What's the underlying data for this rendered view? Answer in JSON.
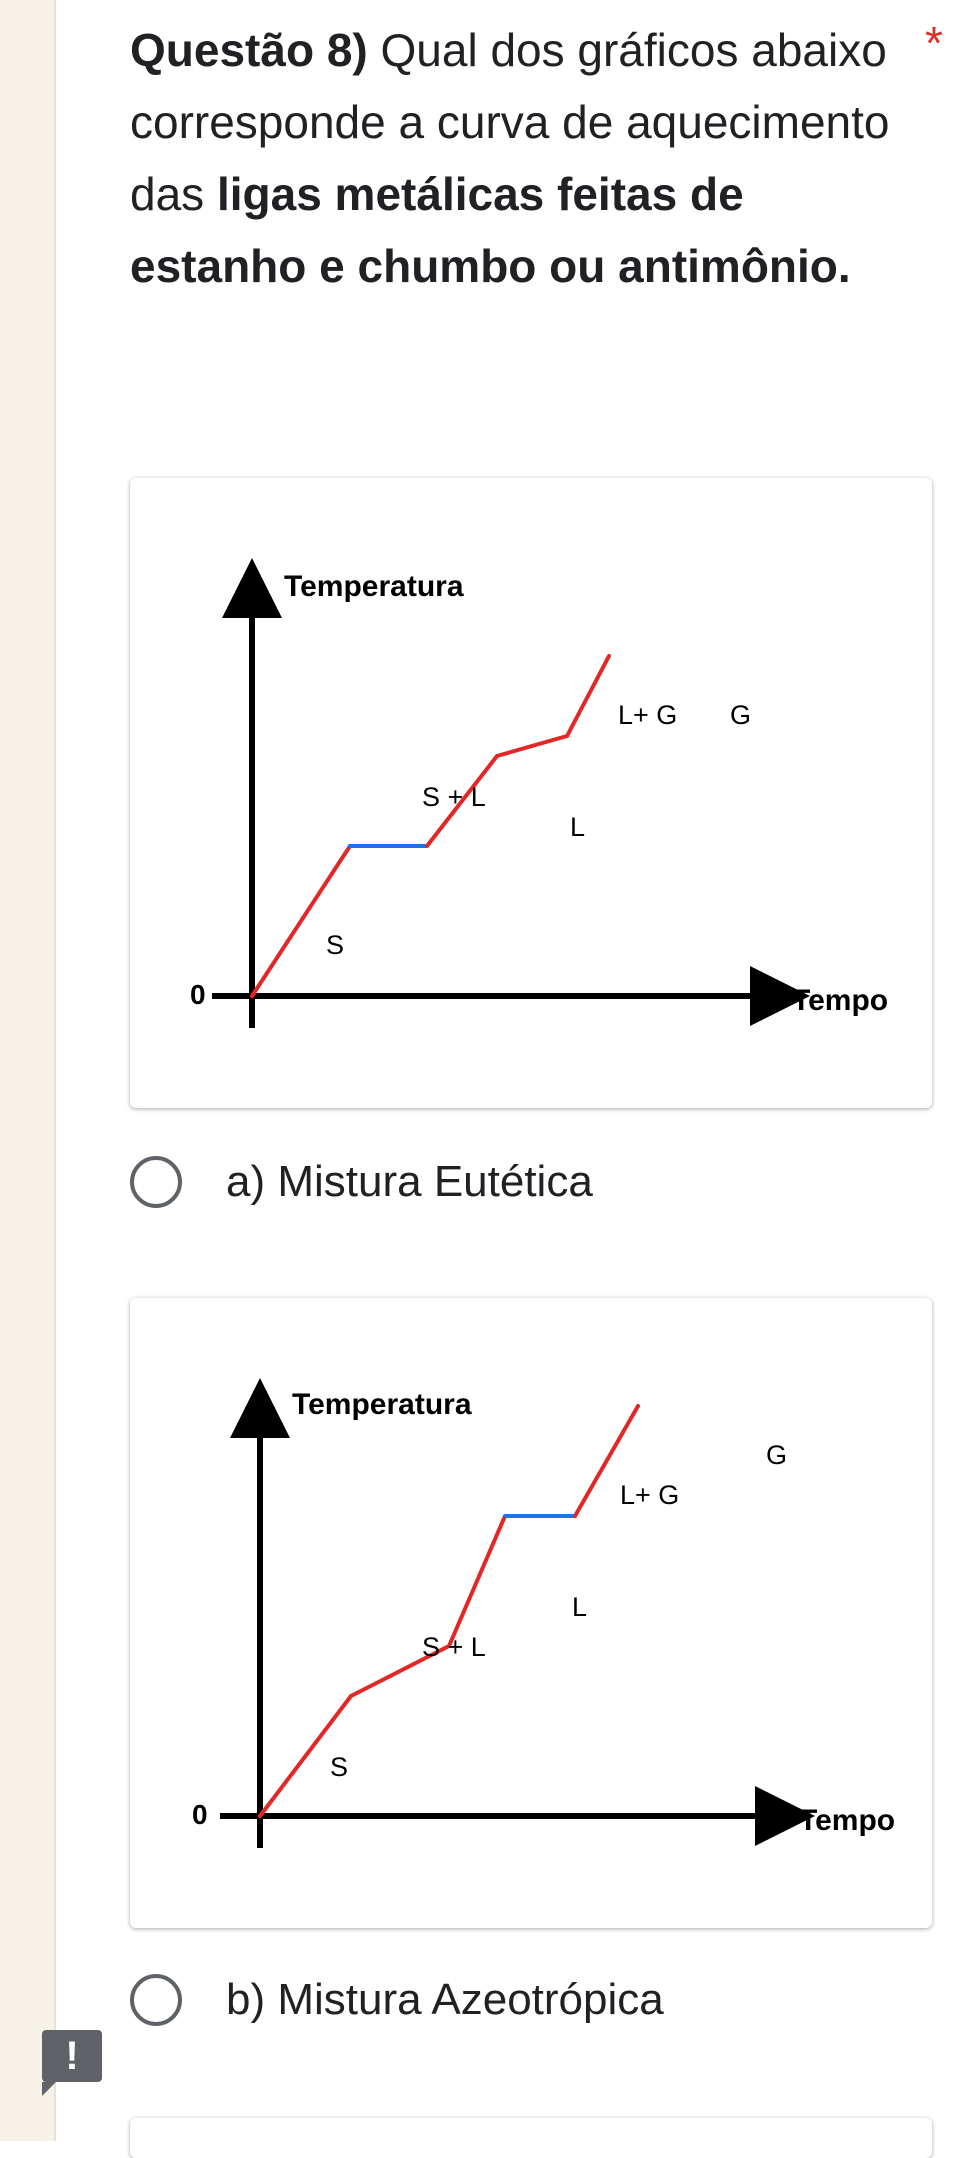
{
  "question": {
    "number": "Questão 8)",
    "text_normal": " Qual dos gráficos abaixo corresponde a curva de aquecimento das ",
    "text_bold": "ligas metálicas feitas de estanho e chumbo ou antimônio.",
    "required_marker": "*"
  },
  "options": [
    {
      "label": "a) Mistura Eutética"
    },
    {
      "label": "b) Mistura Azeotrópica"
    }
  ],
  "error_icon": "!",
  "chart_data": [
    {
      "type": "line",
      "xlabel": "Tempo",
      "ylabel": "Temperatura",
      "origin_label": "0",
      "region_labels": [
        "S",
        "S + L",
        "L",
        "L+ G",
        "G"
      ],
      "plateau_color": "#1a73e8",
      "line_color": "#e32626",
      "segments": [
        {
          "phase": "S",
          "x": [
            0,
            1.4
          ],
          "y": [
            0,
            1.5
          ]
        },
        {
          "phase": "S + L",
          "x": [
            1.4,
            2.5
          ],
          "y": [
            1.5,
            1.5
          ],
          "plateau": true
        },
        {
          "phase": "L",
          "x": [
            2.5,
            3.5
          ],
          "y": [
            1.5,
            2.4
          ]
        },
        {
          "phase": "L+ G",
          "x": [
            3.5,
            4.5
          ],
          "y": [
            2.4,
            2.6
          ]
        },
        {
          "phase": "G",
          "x": [
            4.5,
            5.1
          ],
          "y": [
            2.6,
            3.4
          ]
        }
      ]
    },
    {
      "type": "line",
      "xlabel": "Tempo",
      "ylabel": "Temperatura",
      "origin_label": "0",
      "region_labels": [
        "S",
        "S + L",
        "L",
        "L+ G",
        "G"
      ],
      "plateau_color": "#1a73e8",
      "line_color": "#e32626",
      "segments": [
        {
          "phase": "S",
          "x": [
            0,
            1.3
          ],
          "y": [
            0,
            1.2
          ]
        },
        {
          "phase": "S + L",
          "x": [
            1.3,
            2.7
          ],
          "y": [
            1.2,
            1.7
          ]
        },
        {
          "phase": "L",
          "x": [
            2.7,
            3.5
          ],
          "y": [
            1.7,
            3.0
          ]
        },
        {
          "phase": "L+ G",
          "x": [
            3.5,
            4.5
          ],
          "y": [
            3.0,
            3.0
          ],
          "plateau": true
        },
        {
          "phase": "G",
          "x": [
            4.5,
            5.4
          ],
          "y": [
            3.0,
            4.1
          ]
        }
      ]
    }
  ]
}
